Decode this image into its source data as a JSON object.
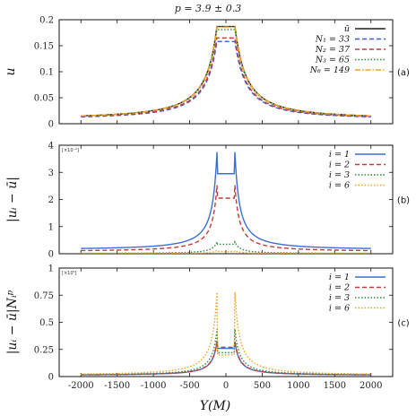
{
  "figure": {
    "title": "p = 3.9 ± 0.3",
    "xlabel": "Y(M)"
  },
  "chart_data": [
    {
      "type": "line",
      "panel_tag": "(a)",
      "ylabel": "u",
      "multiplier": "",
      "xlim": [
        -2300,
        2300
      ],
      "ylim": [
        0,
        0.2
      ],
      "x_ticks": [
        "-2000",
        "-1500",
        "-1000",
        "-500",
        "0",
        "500",
        "1000",
        "1500",
        "2000"
      ],
      "y_ticks": [
        "0",
        "0.05",
        "0.1",
        "0.15",
        "0.2"
      ],
      "legend_position": "top-right",
      "series": [
        {
          "name": "ū",
          "color": "#222222",
          "dash": "solid",
          "profile": {
            "peak": 0.187,
            "tail": 0.009,
            "plateau": true
          }
        },
        {
          "name": "N₁ = 33",
          "color": "#3a5ad8",
          "dash": "dashed",
          "profile": {
            "peak": 0.158,
            "tail": 0.008,
            "plateau": true
          }
        },
        {
          "name": "N₂ = 37",
          "color": "#c23b3b",
          "dash": "dashed",
          "profile": {
            "peak": 0.165,
            "tail": 0.0085,
            "plateau": true
          }
        },
        {
          "name": "N₃ = 65",
          "color": "#2e8b3e",
          "dash": "dotted",
          "profile": {
            "peak": 0.181,
            "tail": 0.009,
            "plateau": true
          }
        },
        {
          "name": "N₆ = 149",
          "color": "#f0a020",
          "dash": "dashdot",
          "profile": {
            "peak": 0.186,
            "tail": 0.009,
            "plateau": true
          }
        }
      ]
    },
    {
      "type": "line",
      "panel_tag": "(b)",
      "ylabel": "|uᵢ − ū|",
      "multiplier": "[×10⁻²]",
      "xlim": [
        -2300,
        2300
      ],
      "ylim": [
        0,
        4
      ],
      "x_ticks": [
        "-2000",
        "-1500",
        "-1000",
        "-500",
        "0",
        "500",
        "1000",
        "1500",
        "2000"
      ],
      "y_ticks": [
        "0",
        "1",
        "2",
        "3",
        "4"
      ],
      "legend_position": "top-right",
      "series": [
        {
          "name": "i = 1",
          "color": "#3a6fd8",
          "dash": "solid",
          "profile": {
            "spike": 3.85,
            "floor": 2.95,
            "tail": 0.14
          }
        },
        {
          "name": "i = 2",
          "color": "#c23b3b",
          "dash": "dashed",
          "profile": {
            "spike": 2.6,
            "floor": 2.05,
            "tail": 0.08
          }
        },
        {
          "name": "i = 3",
          "color": "#2e8b3e",
          "dash": "dotted",
          "profile": {
            "spike": 0.45,
            "floor": 0.35,
            "tail": 0.01
          }
        },
        {
          "name": "i = 6",
          "color": "#f0a020",
          "dash": "dotted",
          "profile": {
            "spike": 0.12,
            "floor": 0.08,
            "tail": 0.005
          }
        }
      ]
    },
    {
      "type": "line",
      "panel_tag": "(c)",
      "ylabel": "|uᵢ − ū|Nᵢᵖ",
      "multiplier": "[×10⁵]",
      "xlim": [
        -2300,
        2300
      ],
      "ylim": [
        0,
        1
      ],
      "x_ticks": [
        "-2000",
        "-1500",
        "-1000",
        "-500",
        "0",
        "500",
        "1000",
        "1500",
        "2000"
      ],
      "y_ticks": [
        "0",
        "0.25",
        "0.5",
        "0.75",
        "1"
      ],
      "legend_position": "top-right",
      "series": [
        {
          "name": "i = 1",
          "color": "#3a6fd8",
          "dash": "solid",
          "profile": {
            "spike": 0.33,
            "floor": 0.26,
            "tail": 0.012
          }
        },
        {
          "name": "i = 2",
          "color": "#c23b3b",
          "dash": "dashed",
          "profile": {
            "spike": 0.34,
            "floor": 0.27,
            "tail": 0.012
          }
        },
        {
          "name": "i = 3",
          "color": "#2e8b3e",
          "dash": "dotted",
          "profile": {
            "spike": 0.45,
            "floor": 0.22,
            "tail": 0.012
          }
        },
        {
          "name": "i = 6",
          "color": "#f0a020",
          "dash": "dotted",
          "profile": {
            "spike": 0.8,
            "floor": 0.2,
            "tail": 0.012
          }
        }
      ]
    }
  ]
}
